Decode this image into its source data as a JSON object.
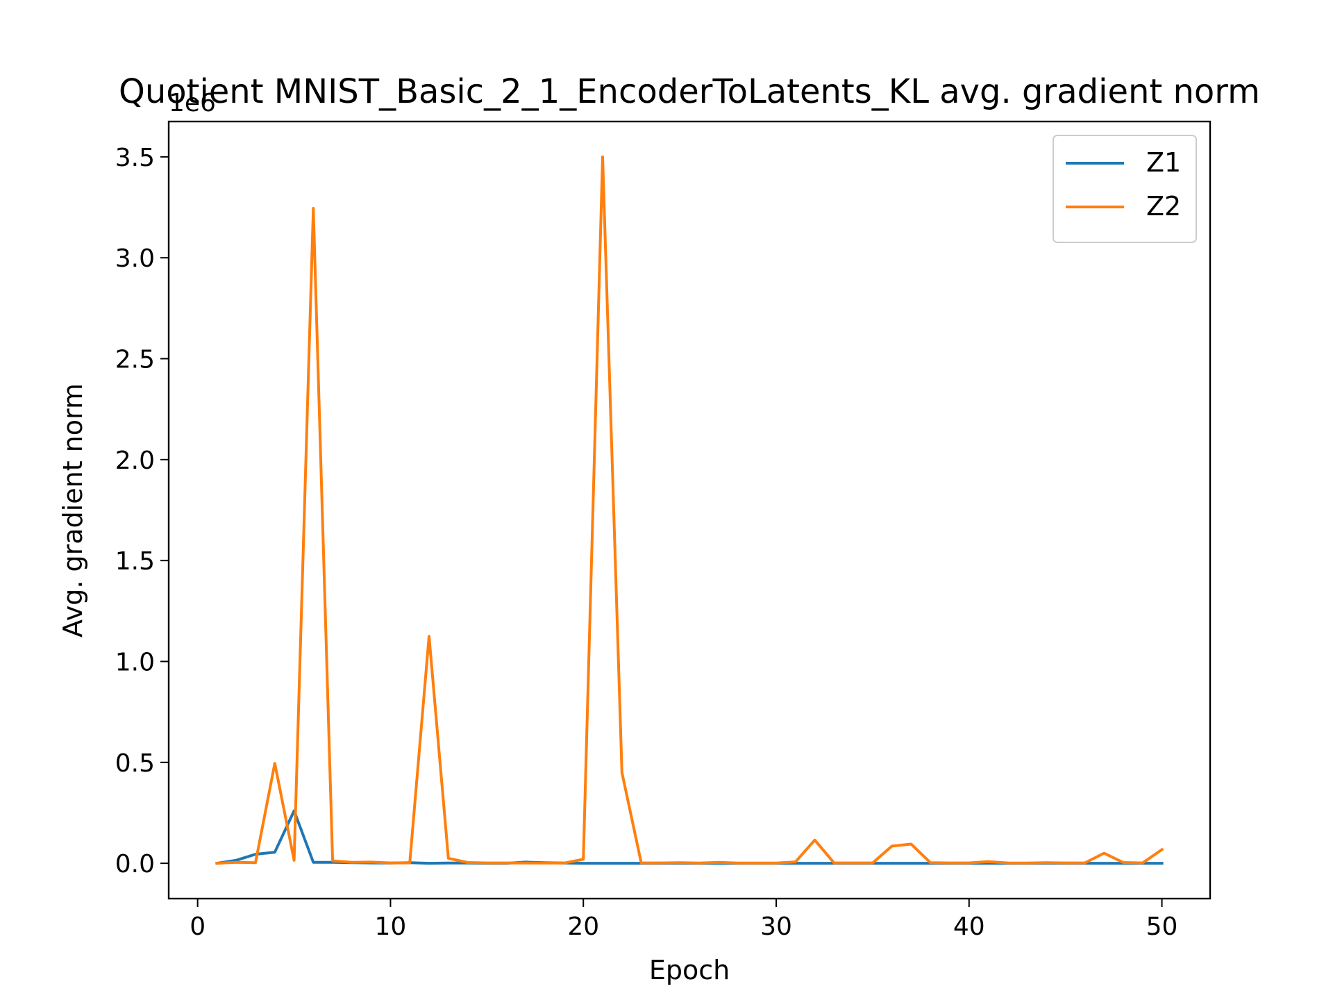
{
  "chart_data": {
    "type": "line",
    "title": "Quotient MNIST_Basic_2_1_EncoderToLatents_KL avg. gradient norm",
    "xlabel": "Epoch",
    "ylabel": "Avg. gradient norm",
    "y_offset_label": "1e6",
    "xlim": [
      -1.5,
      52.5
    ],
    "ylim": [
      -0.175,
      3.675
    ],
    "xticks": [
      0,
      10,
      20,
      30,
      40,
      50
    ],
    "yticks": [
      0.0,
      0.5,
      1.0,
      1.5,
      2.0,
      2.5,
      3.0,
      3.5
    ],
    "ytick_labels": [
      "0.0",
      "0.5",
      "1.0",
      "1.5",
      "2.0",
      "2.5",
      "3.0",
      "3.5"
    ],
    "grid": false,
    "legend_position": "top-right",
    "x": [
      1,
      2,
      3,
      4,
      5,
      6,
      7,
      8,
      9,
      10,
      11,
      12,
      13,
      14,
      15,
      16,
      17,
      18,
      19,
      20,
      21,
      22,
      23,
      24,
      25,
      26,
      27,
      28,
      29,
      30,
      31,
      32,
      33,
      34,
      35,
      36,
      37,
      38,
      39,
      40,
      41,
      42,
      43,
      44,
      45,
      46,
      47,
      48,
      49,
      50
    ],
    "series": [
      {
        "name": "Z1",
        "color": "#1f77b4",
        "values": [
          0.0,
          0.015,
          0.045,
          0.055,
          0.26,
          0.005,
          0.005,
          0.003,
          0.002,
          0.001,
          0.003,
          0.0,
          0.001,
          0.001,
          0.0,
          0.0,
          0.006,
          0.003,
          0.001,
          0.0,
          0.0,
          0.0,
          0.0,
          0.0,
          0.0,
          0.0,
          0.0,
          0.0,
          0.0,
          0.0,
          0.0,
          0.0,
          0.0,
          0.0,
          0.0,
          0.0,
          0.0,
          0.0,
          0.0,
          0.0,
          0.0,
          0.0,
          0.0,
          0.0,
          0.0,
          0.0,
          0.0,
          0.0,
          0.0,
          0.0
        ]
      },
      {
        "name": "Z2",
        "color": "#ff7f0e",
        "values": [
          0.0,
          0.005,
          0.003,
          0.495,
          0.015,
          3.245,
          0.012,
          0.005,
          0.006,
          0.002,
          0.002,
          1.125,
          0.025,
          0.004,
          0.002,
          0.002,
          0.001,
          0.001,
          0.001,
          0.02,
          3.5,
          0.45,
          0.002,
          0.002,
          0.003,
          0.001,
          0.005,
          0.001,
          0.001,
          0.001,
          0.007,
          0.115,
          0.002,
          0.002,
          0.002,
          0.085,
          0.095,
          0.003,
          0.002,
          0.002,
          0.008,
          0.002,
          0.001,
          0.003,
          0.002,
          0.002,
          0.05,
          0.004,
          0.002,
          0.068
        ]
      }
    ]
  }
}
